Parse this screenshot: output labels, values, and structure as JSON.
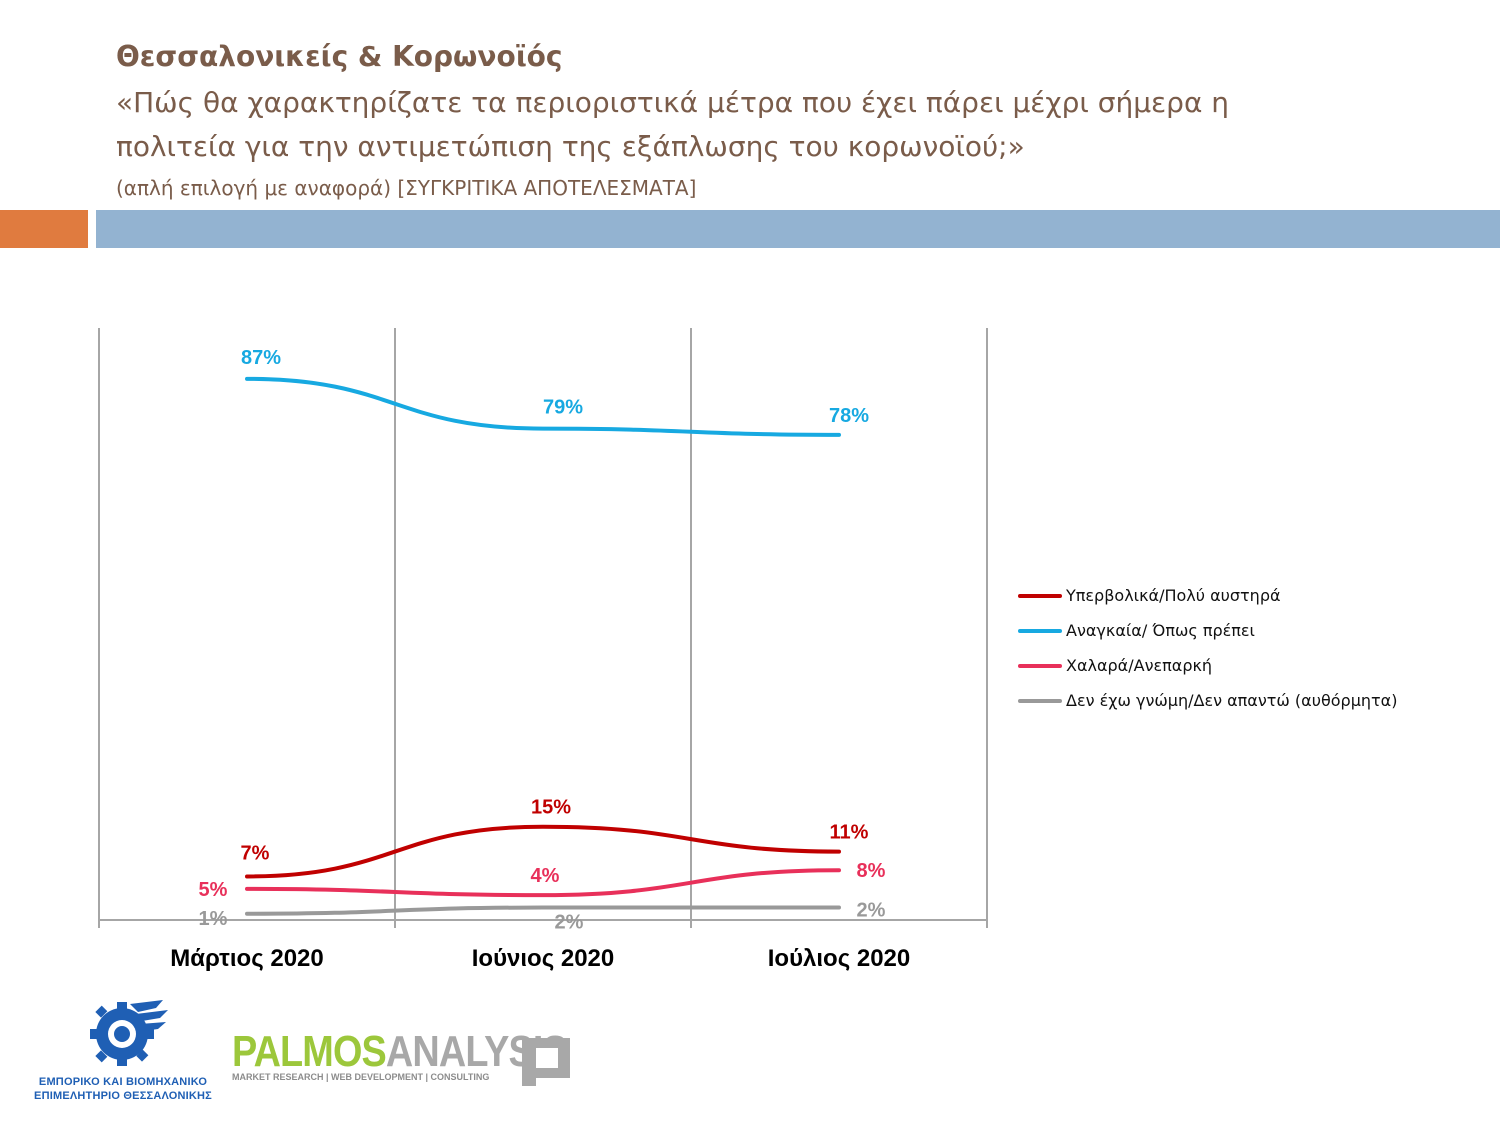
{
  "header": {
    "title": "Θεσσαλονικείς & Κορωνοϊός",
    "question_line1": "«Πώς θα χαρακτηρίζατε τα περιοριστικά μέτρα που έχει πάρει μέχρι σήμερα η",
    "question_line2": "πολιτεία για την αντιμετώπιση της εξάπλωσης του κορωνοϊού;»",
    "subtitle": "(απλή επιλογή με αναφορά) [ΣΥΓΚΡΙΤΙΚΑ ΑΠΟΤΕΛΕΣΜΑΤΑ]"
  },
  "colors": {
    "accent_orange": "#e07b3f",
    "accent_blue": "#93b3d1",
    "title_brown": "#7a5c4a"
  },
  "chart_data": {
    "type": "line",
    "categories": [
      "Μάρτιος 2020",
      "Ιούνιος 2020",
      "Ιούλιος 2020"
    ],
    "series": [
      {
        "name": "Υπερβολικά/Πολύ αυστηρά",
        "values": [
          7,
          15,
          11
        ],
        "labels": [
          "7%",
          "15%",
          "11%"
        ],
        "color": "#c00000"
      },
      {
        "name": "Αναγκαία/ Όπως πρέπει",
        "values": [
          87,
          79,
          78
        ],
        "labels": [
          "87%",
          "79%",
          "78%"
        ],
        "color": "#17a9e1"
      },
      {
        "name": "Χαλαρά/Ανεπαρκή",
        "values": [
          5,
          4,
          8
        ],
        "labels": [
          "5%",
          "4%",
          "8%"
        ],
        "color": "#e8305a"
      },
      {
        "name": "Δεν έχω γνώμη/Δεν απαντώ (αυθόρμητα)",
        "values": [
          1,
          2,
          2
        ],
        "labels": [
          "1%",
          "2%",
          "2%"
        ],
        "color": "#999999"
      }
    ],
    "ylim": [
      0,
      100
    ],
    "grid": "vertical",
    "legend": "right",
    "title": "",
    "xlabel": "",
    "ylabel": ""
  },
  "logos": {
    "ebeth_line1": "ΕΜΠΟΡΙΚΟ ΚΑΙ ΒΙΟΜΗΧΑΝΙΚΟ",
    "ebeth_line2": "ΕΠΙΜΕΛΗΤΗΡΙΟ ΘΕΣΣΑΛΟΝΙΚΗΣ",
    "palmos_a": "PALMOS",
    "palmos_b": "ANALYSIS",
    "palmos_tagline": "MARKET RESEARCH | WEB DEVELOPMENT | CONSULTING"
  }
}
